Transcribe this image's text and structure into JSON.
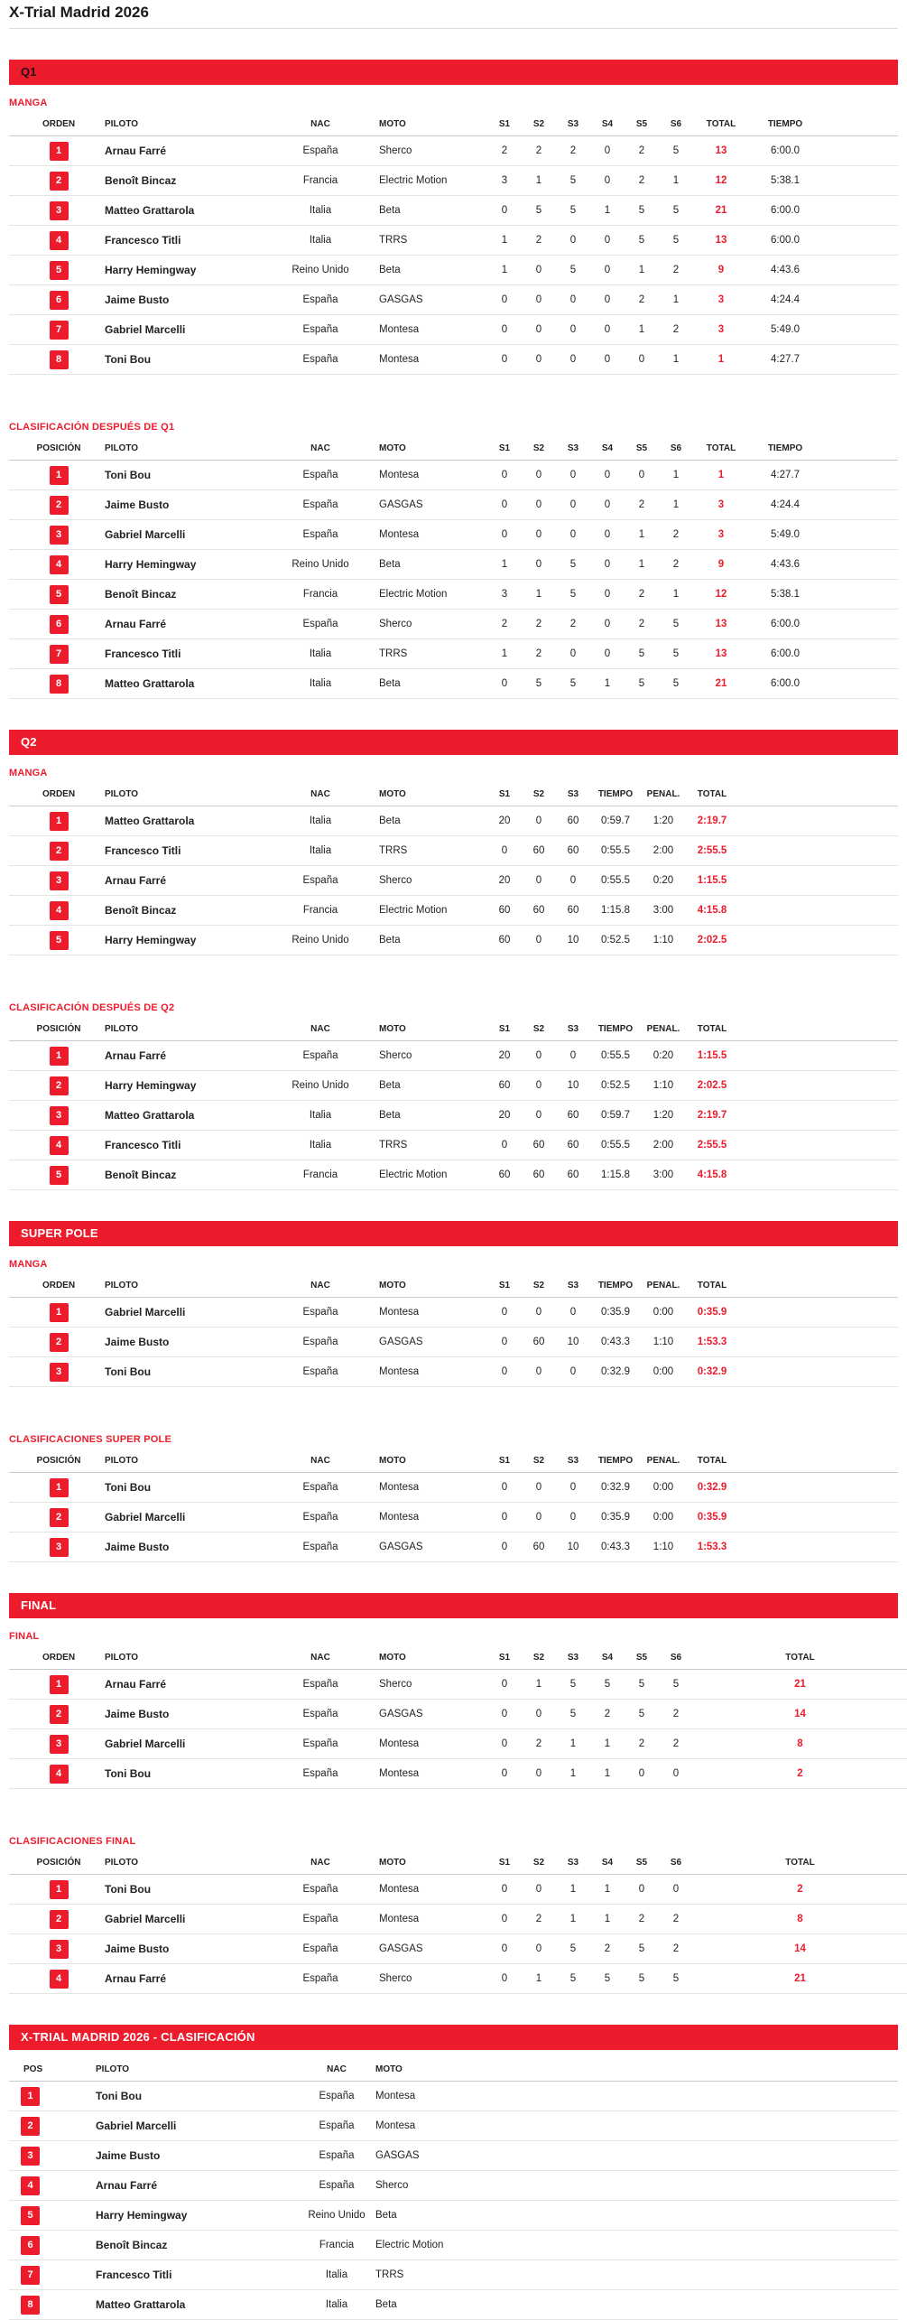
{
  "title": "X-Trial Madrid 2026",
  "accent_color": "#ed1c2d",
  "sections": [
    {
      "id": "q1",
      "banner": "Q1",
      "banner_dark_text": true,
      "tables": [
        {
          "label": "MANGA",
          "type": "A",
          "columns": [
            "ORDEN",
            "PILOTO",
            "NAC",
            "MOTO",
            "S1",
            "S2",
            "S3",
            "S4",
            "S5",
            "S6",
            "TOTAL",
            "TIEMPO"
          ],
          "rows": [
            {
              "pos": "1",
              "pilot": "Arnau Farré",
              "nac": "España",
              "moto": "Sherco",
              "cells": [
                "2",
                "2",
                "2",
                "0",
                "2",
                "5",
                "13",
                "6:00.0"
              ]
            },
            {
              "pos": "2",
              "pilot": "Benoît Bincaz",
              "nac": "Francia",
              "moto": "Electric Motion",
              "cells": [
                "3",
                "1",
                "5",
                "0",
                "2",
                "1",
                "12",
                "5:38.1"
              ]
            },
            {
              "pos": "3",
              "pilot": "Matteo Grattarola",
              "nac": "Italia",
              "moto": "Beta",
              "cells": [
                "0",
                "5",
                "5",
                "1",
                "5",
                "5",
                "21",
                "6:00.0"
              ]
            },
            {
              "pos": "4",
              "pilot": "Francesco Titli",
              "nac": "Italia",
              "moto": "TRRS",
              "cells": [
                "1",
                "2",
                "0",
                "0",
                "5",
                "5",
                "13",
                "6:00.0"
              ]
            },
            {
              "pos": "5",
              "pilot": "Harry Hemingway",
              "nac": "Reino Unido",
              "moto": "Beta",
              "cells": [
                "1",
                "0",
                "5",
                "0",
                "1",
                "2",
                "9",
                "4:43.6"
              ]
            },
            {
              "pos": "6",
              "pilot": "Jaime Busto",
              "nac": "España",
              "moto": "GASGAS",
              "cells": [
                "0",
                "0",
                "0",
                "0",
                "2",
                "1",
                "3",
                "4:24.4"
              ]
            },
            {
              "pos": "7",
              "pilot": "Gabriel Marcelli",
              "nac": "España",
              "moto": "Montesa",
              "cells": [
                "0",
                "0",
                "0",
                "0",
                "1",
                "2",
                "3",
                "5:49.0"
              ]
            },
            {
              "pos": "8",
              "pilot": "Toni Bou",
              "nac": "España",
              "moto": "Montesa",
              "cells": [
                "0",
                "0",
                "0",
                "0",
                "0",
                "1",
                "1",
                "4:27.7"
              ]
            }
          ]
        },
        {
          "label": "CLASIFICACIÓN DESPUÉS DE Q1",
          "type": "A",
          "columns": [
            "POSICIÓN",
            "PILOTO",
            "NAC",
            "MOTO",
            "S1",
            "S2",
            "S3",
            "S4",
            "S5",
            "S6",
            "TOTAL",
            "TIEMPO"
          ],
          "rows": [
            {
              "pos": "1",
              "pilot": "Toni Bou",
              "nac": "España",
              "moto": "Montesa",
              "cells": [
                "0",
                "0",
                "0",
                "0",
                "0",
                "1",
                "1",
                "4:27.7"
              ]
            },
            {
              "pos": "2",
              "pilot": "Jaime Busto",
              "nac": "España",
              "moto": "GASGAS",
              "cells": [
                "0",
                "0",
                "0",
                "0",
                "2",
                "1",
                "3",
                "4:24.4"
              ]
            },
            {
              "pos": "3",
              "pilot": "Gabriel Marcelli",
              "nac": "España",
              "moto": "Montesa",
              "cells": [
                "0",
                "0",
                "0",
                "0",
                "1",
                "2",
                "3",
                "5:49.0"
              ]
            },
            {
              "pos": "4",
              "pilot": "Harry Hemingway",
              "nac": "Reino Unido",
              "moto": "Beta",
              "cells": [
                "1",
                "0",
                "5",
                "0",
                "1",
                "2",
                "9",
                "4:43.6"
              ]
            },
            {
              "pos": "5",
              "pilot": "Benoît Bincaz",
              "nac": "Francia",
              "moto": "Electric Motion",
              "cells": [
                "3",
                "1",
                "5",
                "0",
                "2",
                "1",
                "12",
                "5:38.1"
              ]
            },
            {
              "pos": "6",
              "pilot": "Arnau Farré",
              "nac": "España",
              "moto": "Sherco",
              "cells": [
                "2",
                "2",
                "2",
                "0",
                "2",
                "5",
                "13",
                "6:00.0"
              ]
            },
            {
              "pos": "7",
              "pilot": "Francesco Titli",
              "nac": "Italia",
              "moto": "TRRS",
              "cells": [
                "1",
                "2",
                "0",
                "0",
                "5",
                "5",
                "13",
                "6:00.0"
              ]
            },
            {
              "pos": "8",
              "pilot": "Matteo Grattarola",
              "nac": "Italia",
              "moto": "Beta",
              "cells": [
                "0",
                "5",
                "5",
                "1",
                "5",
                "5",
                "21",
                "6:00.0"
              ]
            }
          ]
        }
      ]
    },
    {
      "id": "q2",
      "banner": "Q2",
      "banner_dark_text": false,
      "tables": [
        {
          "label": "MANGA",
          "type": "B",
          "columns": [
            "ORDEN",
            "PILOTO",
            "NAC",
            "MOTO",
            "S1",
            "S2",
            "S3",
            "TIEMPO",
            "PENAL.",
            "TOTAL"
          ],
          "rows": [
            {
              "pos": "1",
              "pilot": "Matteo Grattarola",
              "nac": "Italia",
              "moto": "Beta",
              "cells": [
                "20",
                "0",
                "60",
                "0:59.7",
                "1:20",
                "2:19.7"
              ]
            },
            {
              "pos": "2",
              "pilot": "Francesco Titli",
              "nac": "Italia",
              "moto": "TRRS",
              "cells": [
                "0",
                "60",
                "60",
                "0:55.5",
                "2:00",
                "2:55.5"
              ]
            },
            {
              "pos": "3",
              "pilot": "Arnau Farré",
              "nac": "España",
              "moto": "Sherco",
              "cells": [
                "20",
                "0",
                "0",
                "0:55.5",
                "0:20",
                "1:15.5"
              ]
            },
            {
              "pos": "4",
              "pilot": "Benoît Bincaz",
              "nac": "Francia",
              "moto": "Electric Motion",
              "cells": [
                "60",
                "60",
                "60",
                "1:15.8",
                "3:00",
                "4:15.8"
              ]
            },
            {
              "pos": "5",
              "pilot": "Harry Hemingway",
              "nac": "Reino Unido",
              "moto": "Beta",
              "cells": [
                "60",
                "0",
                "10",
                "0:52.5",
                "1:10",
                "2:02.5"
              ]
            }
          ]
        },
        {
          "label": "CLASIFICACIÓN DESPUÉS DE Q2",
          "type": "B",
          "columns": [
            "POSICIÓN",
            "PILOTO",
            "NAC",
            "MOTO",
            "S1",
            "S2",
            "S3",
            "TIEMPO",
            "PENAL.",
            "TOTAL"
          ],
          "rows": [
            {
              "pos": "1",
              "pilot": "Arnau Farré",
              "nac": "España",
              "moto": "Sherco",
              "cells": [
                "20",
                "0",
                "0",
                "0:55.5",
                "0:20",
                "1:15.5"
              ]
            },
            {
              "pos": "2",
              "pilot": "Harry Hemingway",
              "nac": "Reino Unido",
              "moto": "Beta",
              "cells": [
                "60",
                "0",
                "10",
                "0:52.5",
                "1:10",
                "2:02.5"
              ]
            },
            {
              "pos": "3",
              "pilot": "Matteo Grattarola",
              "nac": "Italia",
              "moto": "Beta",
              "cells": [
                "20",
                "0",
                "60",
                "0:59.7",
                "1:20",
                "2:19.7"
              ]
            },
            {
              "pos": "4",
              "pilot": "Francesco Titli",
              "nac": "Italia",
              "moto": "TRRS",
              "cells": [
                "0",
                "60",
                "60",
                "0:55.5",
                "2:00",
                "2:55.5"
              ]
            },
            {
              "pos": "5",
              "pilot": "Benoît Bincaz",
              "nac": "Francia",
              "moto": "Electric Motion",
              "cells": [
                "60",
                "60",
                "60",
                "1:15.8",
                "3:00",
                "4:15.8"
              ]
            }
          ]
        }
      ]
    },
    {
      "id": "super-pole",
      "banner": "SUPER POLE",
      "banner_dark_text": false,
      "tables": [
        {
          "label": "MANGA",
          "type": "B",
          "columns": [
            "ORDEN",
            "PILOTO",
            "NAC",
            "MOTO",
            "S1",
            "S2",
            "S3",
            "TIEMPO",
            "PENAL.",
            "TOTAL"
          ],
          "rows": [
            {
              "pos": "1",
              "pilot": "Gabriel Marcelli",
              "nac": "España",
              "moto": "Montesa",
              "cells": [
                "0",
                "0",
                "0",
                "0:35.9",
                "0:00",
                "0:35.9"
              ]
            },
            {
              "pos": "2",
              "pilot": "Jaime Busto",
              "nac": "España",
              "moto": "GASGAS",
              "cells": [
                "0",
                "60",
                "10",
                "0:43.3",
                "1:10",
                "1:53.3"
              ]
            },
            {
              "pos": "3",
              "pilot": "Toni Bou",
              "nac": "España",
              "moto": "Montesa",
              "cells": [
                "0",
                "0",
                "0",
                "0:32.9",
                "0:00",
                "0:32.9"
              ]
            }
          ]
        },
        {
          "label": "CLASIFICACIONES SUPER POLE",
          "type": "B",
          "columns": [
            "POSICIÓN",
            "PILOTO",
            "NAC",
            "MOTO",
            "S1",
            "S2",
            "S3",
            "TIEMPO",
            "PENAL.",
            "TOTAL"
          ],
          "rows": [
            {
              "pos": "1",
              "pilot": "Toni Bou",
              "nac": "España",
              "moto": "Montesa",
              "cells": [
                "0",
                "0",
                "0",
                "0:32.9",
                "0:00",
                "0:32.9"
              ]
            },
            {
              "pos": "2",
              "pilot": "Gabriel Marcelli",
              "nac": "España",
              "moto": "Montesa",
              "cells": [
                "0",
                "0",
                "0",
                "0:35.9",
                "0:00",
                "0:35.9"
              ]
            },
            {
              "pos": "3",
              "pilot": "Jaime Busto",
              "nac": "España",
              "moto": "GASGAS",
              "cells": [
                "0",
                "60",
                "10",
                "0:43.3",
                "1:10",
                "1:53.3"
              ]
            }
          ]
        }
      ]
    },
    {
      "id": "final",
      "banner": "FINAL",
      "banner_dark_text": false,
      "tables": [
        {
          "label": "FINAL",
          "type": "C",
          "columns": [
            "ORDEN",
            "PILOTO",
            "NAC",
            "MOTO",
            "S1",
            "S2",
            "S3",
            "S4",
            "S5",
            "S6",
            "TOTAL"
          ],
          "rows": [
            {
              "pos": "1",
              "pilot": "Arnau Farré",
              "nac": "España",
              "moto": "Sherco",
              "cells": [
                "0",
                "1",
                "5",
                "5",
                "5",
                "5",
                "21"
              ]
            },
            {
              "pos": "2",
              "pilot": "Jaime Busto",
              "nac": "España",
              "moto": "GASGAS",
              "cells": [
                "0",
                "0",
                "5",
                "2",
                "5",
                "2",
                "14"
              ]
            },
            {
              "pos": "3",
              "pilot": "Gabriel Marcelli",
              "nac": "España",
              "moto": "Montesa",
              "cells": [
                "0",
                "2",
                "1",
                "1",
                "2",
                "2",
                "8"
              ]
            },
            {
              "pos": "4",
              "pilot": "Toni Bou",
              "nac": "España",
              "moto": "Montesa",
              "cells": [
                "0",
                "0",
                "1",
                "1",
                "0",
                "0",
                "2"
              ]
            }
          ]
        },
        {
          "label": "CLASIFICACIONES FINAL",
          "type": "C",
          "columns": [
            "POSICIÓN",
            "PILOTO",
            "NAC",
            "MOTO",
            "S1",
            "S2",
            "S3",
            "S4",
            "S5",
            "S6",
            "TOTAL"
          ],
          "rows": [
            {
              "pos": "1",
              "pilot": "Toni Bou",
              "nac": "España",
              "moto": "Montesa",
              "cells": [
                "0",
                "0",
                "1",
                "1",
                "0",
                "0",
                "2"
              ]
            },
            {
              "pos": "2",
              "pilot": "Gabriel Marcelli",
              "nac": "España",
              "moto": "Montesa",
              "cells": [
                "0",
                "2",
                "1",
                "1",
                "2",
                "2",
                "8"
              ]
            },
            {
              "pos": "3",
              "pilot": "Jaime Busto",
              "nac": "España",
              "moto": "GASGAS",
              "cells": [
                "0",
                "0",
                "5",
                "2",
                "5",
                "2",
                "14"
              ]
            },
            {
              "pos": "4",
              "pilot": "Arnau Farré",
              "nac": "España",
              "moto": "Sherco",
              "cells": [
                "0",
                "1",
                "5",
                "5",
                "5",
                "5",
                "21"
              ]
            }
          ]
        }
      ]
    },
    {
      "id": "clasificacion",
      "banner": "X-TRIAL MADRID 2026 - CLASIFICACIÓN",
      "banner_dark_text": false,
      "tables": [
        {
          "label": "",
          "type": "D",
          "columns": [
            "POS",
            "PILOTO",
            "NAC",
            "MOTO"
          ],
          "rows": [
            {
              "pos": "1",
              "pilot": "Toni Bou",
              "nac": "España",
              "moto": "Montesa",
              "cells": []
            },
            {
              "pos": "2",
              "pilot": "Gabriel Marcelli",
              "nac": "España",
              "moto": "Montesa",
              "cells": []
            },
            {
              "pos": "3",
              "pilot": "Jaime Busto",
              "nac": "España",
              "moto": "GASGAS",
              "cells": []
            },
            {
              "pos": "4",
              "pilot": "Arnau Farré",
              "nac": "España",
              "moto": "Sherco",
              "cells": []
            },
            {
              "pos": "5",
              "pilot": "Harry Hemingway",
              "nac": "Reino Unido",
              "moto": "Beta",
              "cells": []
            },
            {
              "pos": "6",
              "pilot": "Benoît Bincaz",
              "nac": "Francia",
              "moto": "Electric Motion",
              "cells": []
            },
            {
              "pos": "7",
              "pilot": "Francesco Titli",
              "nac": "Italia",
              "moto": "TRRS",
              "cells": []
            },
            {
              "pos": "8",
              "pilot": "Matteo Grattarola",
              "nac": "Italia",
              "moto": "Beta",
              "cells": []
            }
          ]
        }
      ]
    }
  ]
}
